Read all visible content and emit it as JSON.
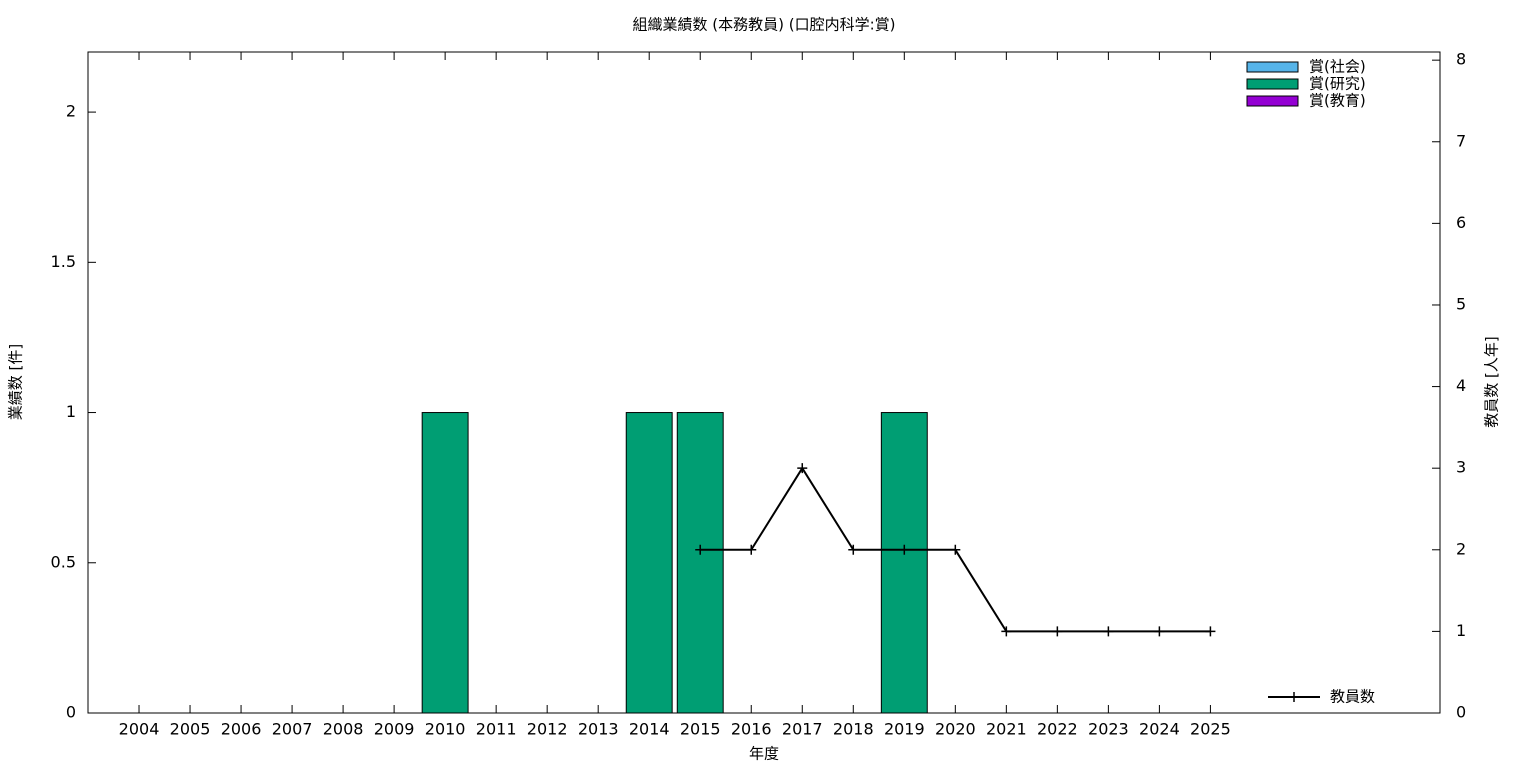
{
  "chart_data": {
    "type": "bar",
    "title": "組織業績数 (本務教員) (口腔内科学:賞)",
    "x_label": "年度",
    "y_label": "業績数 [件]",
    "y2_label": "教員数 [人年]",
    "categories": [
      "2004",
      "2005",
      "2006",
      "2007",
      "2008",
      "2009",
      "2010",
      "2011",
      "2012",
      "2013",
      "2014",
      "2015",
      "2016",
      "2017",
      "2018",
      "2019",
      "2020",
      "2021",
      "2022",
      "2023",
      "2024",
      "2025"
    ],
    "series": [
      {
        "name": "賞(社会)",
        "color": "#56b4e9",
        "values": [
          0,
          0,
          0,
          0,
          0,
          0,
          0,
          0,
          0,
          0,
          0,
          0,
          0,
          0,
          0,
          0,
          0,
          0,
          0,
          0,
          0,
          0
        ]
      },
      {
        "name": "賞(研究)",
        "color": "#009e73",
        "values": [
          0,
          0,
          0,
          0,
          0,
          0,
          1,
          0,
          0,
          0,
          1,
          1,
          0,
          0,
          0,
          1,
          0,
          0,
          0,
          0,
          0,
          0
        ]
      },
      {
        "name": "賞(教育)",
        "color": "#9400d3",
        "values": [
          0,
          0,
          0,
          0,
          0,
          0,
          0,
          0,
          0,
          0,
          0,
          0,
          0,
          0,
          0,
          0,
          0,
          0,
          0,
          0,
          0,
          0
        ]
      },
      {
        "name": "教員数",
        "color": "#000000",
        "type": "line",
        "axis": "y2",
        "values": [
          null,
          null,
          null,
          null,
          null,
          null,
          null,
          null,
          null,
          null,
          null,
          2,
          2,
          3,
          2,
          2,
          2,
          1,
          1,
          1,
          1,
          1
        ]
      }
    ],
    "ylim": [
      0,
      2.2
    ],
    "yticks": [
      0,
      0.5,
      1,
      1.5,
      2
    ],
    "y2lim": [
      0,
      8.1
    ],
    "y2ticks": [
      0,
      1,
      2,
      3,
      4,
      5,
      6,
      7,
      8
    ],
    "stacked": true
  }
}
